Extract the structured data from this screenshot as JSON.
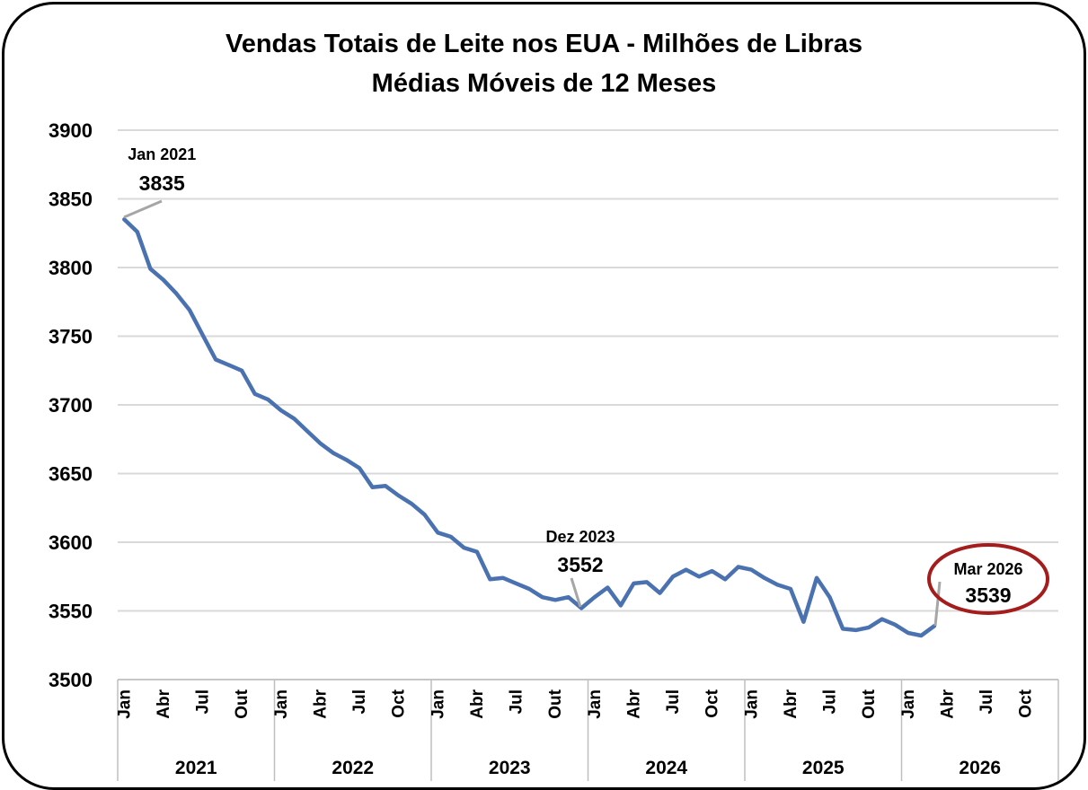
{
  "chart_data": {
    "type": "line",
    "title": "Vendas Totais de Leite nos EUA - Milhões de Libras",
    "subtitle": "Médias Móveis de 12 Meses",
    "ylim": [
      3500,
      3900
    ],
    "yticks": [
      3500,
      3550,
      3600,
      3650,
      3700,
      3750,
      3800,
      3850,
      3900
    ],
    "grid": true,
    "years": [
      "2021",
      "2022",
      "2023",
      "2024",
      "2025",
      "2026"
    ],
    "month_ticks": [
      "Jan",
      "Abr",
      "Jul",
      "Out",
      "Jan",
      "Abr",
      "Jul",
      "Oct",
      "Jan",
      "Abr",
      "Jul",
      "Out",
      "Jan",
      "Abr",
      "Jul",
      "Oct",
      "Jan",
      "Abr",
      "Jul",
      "Out",
      "Jan",
      "Abr",
      "Jul",
      "Oct"
    ],
    "x_start": "Jan 2021",
    "series": [
      {
        "color": "#4a72b0",
        "values": [
          3835,
          3826,
          3799,
          3791,
          3781,
          3769,
          3751,
          3733,
          3729,
          3725,
          3708,
          3704,
          3696,
          3690,
          3681,
          3672,
          3665,
          3660,
          3654,
          3640,
          3641,
          3634,
          3628,
          3620,
          3607,
          3604,
          3596,
          3593,
          3573,
          3574,
          3570,
          3566,
          3560,
          3558,
          3560,
          3552,
          3560,
          3567,
          3554,
          3570,
          3571,
          3563,
          3575,
          3580,
          3575,
          3579,
          3573,
          3582,
          3580,
          3574,
          3569,
          3566,
          3542,
          3574,
          3560,
          3537,
          3536,
          3538,
          3544,
          3540,
          3534,
          3532,
          3539
        ]
      }
    ],
    "annotations": [
      {
        "date": "Jan 2021",
        "value": "3835",
        "index": 0,
        "circled": false
      },
      {
        "date": "Dez 2023",
        "value": "3552",
        "index": 35,
        "circled": false
      },
      {
        "date": "Mar 2026",
        "value": "3539",
        "index": 62,
        "circled": true,
        "circle_color": "#a51c1c"
      }
    ]
  }
}
